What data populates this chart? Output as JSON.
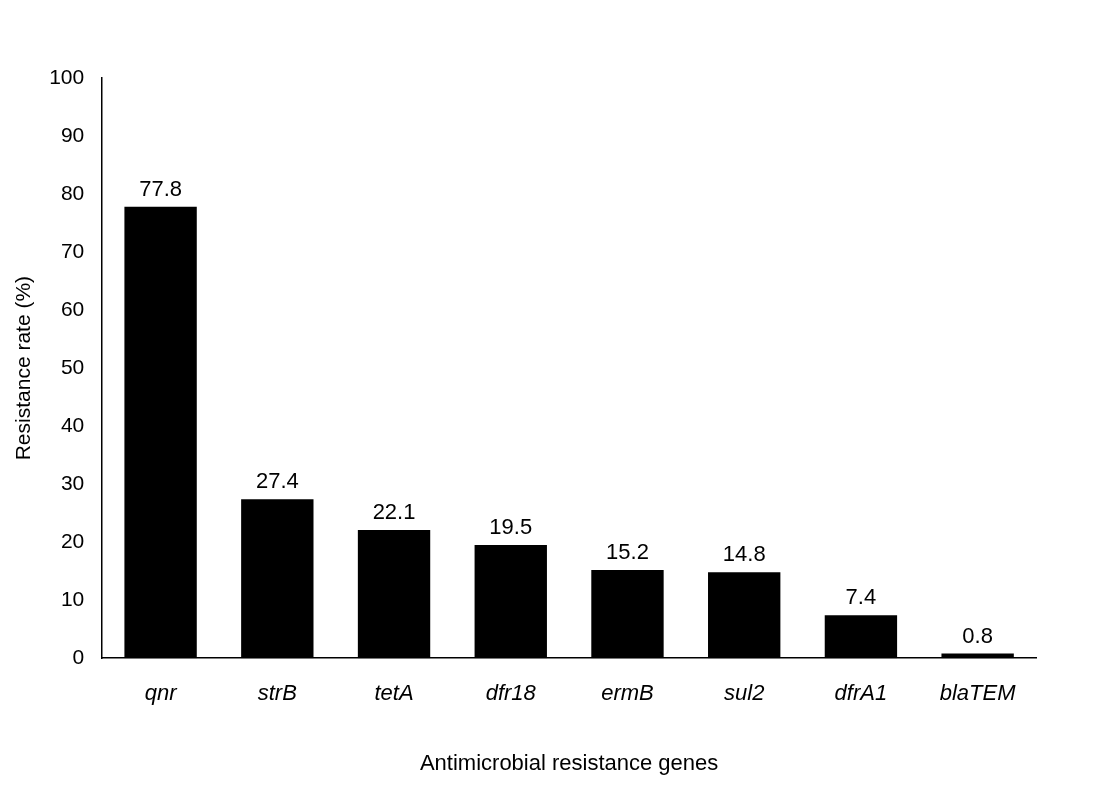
{
  "chart_data": {
    "type": "bar",
    "xlabel": "Antimicrobial resistance genes",
    "ylabel": "Resistance rate (%)",
    "categories": [
      "qnr",
      "strB",
      "tetA",
      "dfr18",
      "ermB",
      "sul2",
      "dfrA1",
      "blaTEM"
    ],
    "values": [
      77.8,
      27.4,
      22.1,
      19.5,
      15.2,
      14.8,
      7.4,
      0.8
    ],
    "color": "#000000",
    "ylim": [
      0,
      100
    ],
    "yticks": [
      0,
      10,
      20,
      30,
      40,
      50,
      60,
      70,
      80,
      90,
      100
    ],
    "grid": false,
    "data_labels": true
  }
}
